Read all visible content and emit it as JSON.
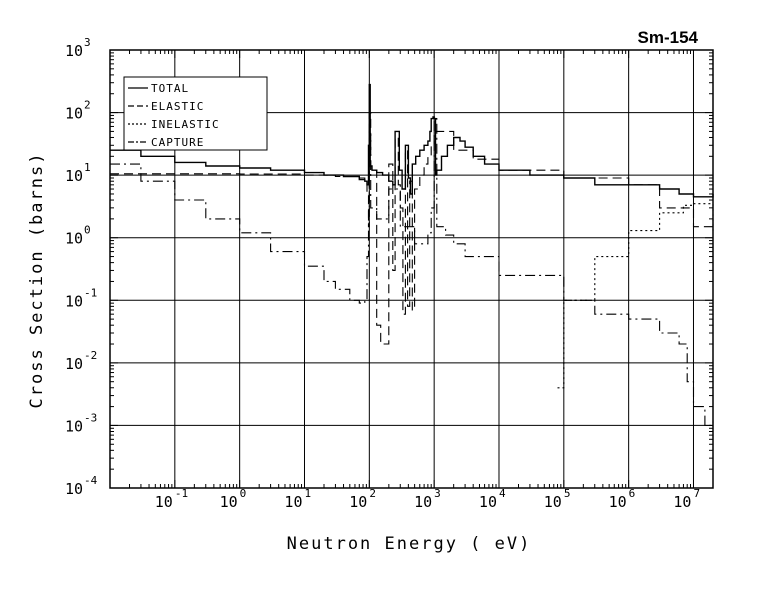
{
  "chart_data": {
    "type": "line",
    "title": "Sm-154",
    "xlabel": "Neutron Energy ( eV)",
    "ylabel": "Cross Section (barns)",
    "x_scale": "log",
    "y_scale": "log",
    "xlim": [
      0.01,
      20000000
    ],
    "ylim": [
      0.0001,
      1000
    ],
    "grid": true,
    "legend_position": "top-left",
    "x_ticks": [
      {
        "base": "10",
        "exp": "-1"
      },
      {
        "base": "10",
        "exp": "0"
      },
      {
        "base": "10",
        "exp": "1"
      },
      {
        "base": "10",
        "exp": "2"
      },
      {
        "base": "10",
        "exp": "3"
      },
      {
        "base": "10",
        "exp": "4"
      },
      {
        "base": "10",
        "exp": "5"
      },
      {
        "base": "10",
        "exp": "6"
      },
      {
        "base": "10",
        "exp": "7"
      }
    ],
    "y_ticks": [
      {
        "base": "10",
        "exp": "-4"
      },
      {
        "base": "10",
        "exp": "-3"
      },
      {
        "base": "10",
        "exp": "-2"
      },
      {
        "base": "10",
        "exp": "-1"
      },
      {
        "base": "10",
        "exp": "0"
      },
      {
        "base": "10",
        "exp": "1"
      },
      {
        "base": "10",
        "exp": "2"
      },
      {
        "base": "10",
        "exp": "3"
      }
    ],
    "series": [
      {
        "name": "TOTAL",
        "style": "solid",
        "x": [
          0.01,
          0.03,
          0.1,
          0.3,
          1,
          3,
          10,
          20,
          40,
          70,
          85,
          92,
          97,
          100,
          103,
          110,
          130,
          160,
          200,
          230,
          250,
          290,
          320,
          360,
          400,
          430,
          460,
          520,
          600,
          700,
          800,
          860,
          900,
          960,
          1000,
          1050,
          1100,
          1300,
          1600,
          2000,
          2500,
          3000,
          4000,
          6000,
          10000,
          30000,
          100000,
          300000,
          1000000,
          3000000,
          6000000,
          10000000,
          20000000
        ],
        "y": [
          25,
          20,
          16,
          14,
          13,
          12,
          11,
          10,
          9.5,
          8.5,
          8,
          7,
          30,
          280,
          14,
          12,
          11,
          10,
          8,
          7,
          50,
          12,
          6,
          30,
          9,
          5,
          15,
          20,
          25,
          30,
          35,
          50,
          80,
          85,
          80,
          10,
          12,
          20,
          30,
          40,
          35,
          28,
          20,
          15,
          12,
          10,
          9,
          7,
          7,
          6,
          5,
          4.5,
          5
        ]
      },
      {
        "name": "ELASTIC",
        "style": "dashed",
        "x": [
          0.01,
          0.1,
          1,
          10,
          30,
          70,
          85,
          92,
          97,
          100,
          105,
          130,
          150,
          170,
          200,
          230,
          250,
          280,
          300,
          330,
          360,
          390,
          420,
          460,
          500,
          600,
          700,
          800,
          900,
          1000,
          2000,
          4000,
          10000,
          100000,
          1000000,
          3000000,
          10000000,
          20000000
        ],
        "y": [
          10.5,
          10.5,
          10.4,
          10,
          9.5,
          9,
          8,
          5,
          1.5,
          100,
          12,
          0.04,
          0.02,
          0.02,
          15,
          0.3,
          40,
          7,
          3,
          0.06,
          25,
          0.08,
          8,
          0.07,
          6,
          10,
          15,
          20,
          30,
          50,
          25,
          18,
          12,
          9,
          7,
          3,
          1.5,
          1.8
        ]
      },
      {
        "name": "INELASTIC",
        "style": "dotted",
        "x": [
          80000,
          90000,
          100000,
          300000,
          1000000,
          3000000,
          7000000,
          10000000,
          20000000
        ],
        "y": [
          0.004,
          0.004,
          0.1,
          0.5,
          1.3,
          2.5,
          3.3,
          3.5,
          1.2
        ]
      },
      {
        "name": "CAPTURE",
        "style": "dashdot",
        "x": [
          0.01,
          0.03,
          0.1,
          0.3,
          1,
          3,
          10,
          20,
          30,
          50,
          70,
          85,
          92,
          97,
          100,
          105,
          130,
          200,
          300,
          500,
          800,
          900,
          1000,
          1100,
          1500,
          2000,
          3000,
          10000,
          100000,
          300000,
          1000000,
          3000000,
          6000000,
          8000000,
          10000000,
          15000000,
          20000000
        ],
        "y": [
          15,
          8,
          4,
          2,
          1.2,
          0.6,
          0.35,
          0.2,
          0.15,
          0.1,
          0.09,
          0.1,
          0.5,
          3,
          50,
          3,
          2,
          6,
          1.5,
          0.8,
          1.2,
          3,
          80,
          1.5,
          1.1,
          0.8,
          0.5,
          0.25,
          0.1,
          0.06,
          0.05,
          0.03,
          0.02,
          0.005,
          0.002,
          0.001,
          0.0012
        ]
      }
    ]
  }
}
